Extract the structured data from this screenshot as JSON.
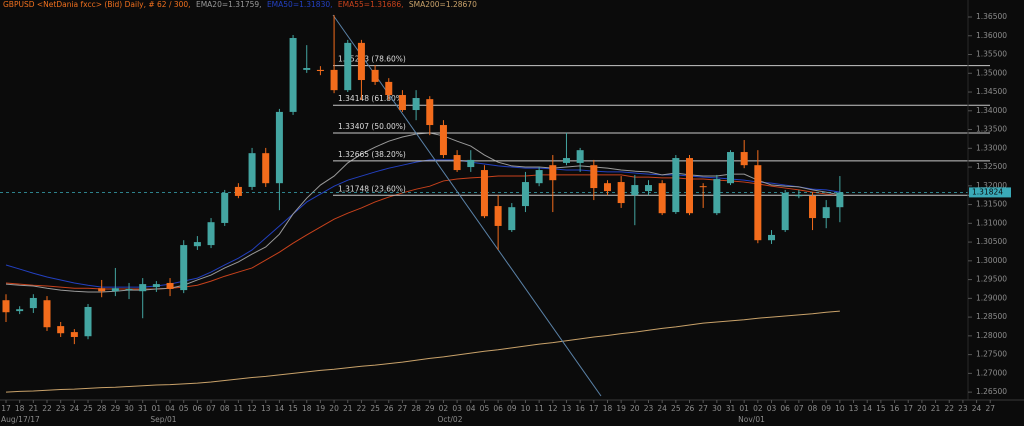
{
  "chart_data": {
    "type": "candlestick",
    "title_head": "GBPUSD <NetDania fxcc> (Bid) Daily, # 62 / 300,",
    "title_color": "#f0701e",
    "categories": [
      "17",
      "18",
      "21",
      "22",
      "23",
      "24",
      "25",
      "28",
      "29",
      "30",
      "31",
      "01",
      "04",
      "05",
      "06",
      "07",
      "08",
      "11",
      "12",
      "13",
      "14",
      "15",
      "18",
      "19",
      "20",
      "21",
      "22",
      "25",
      "26",
      "27",
      "28",
      "29",
      "02",
      "03",
      "04",
      "05",
      "06",
      "09",
      "10",
      "11",
      "12",
      "13",
      "16",
      "17",
      "18",
      "19",
      "20",
      "23",
      "24",
      "25",
      "26",
      "27",
      "30",
      "31",
      "01",
      "02",
      "03",
      "06",
      "07",
      "08",
      "09",
      "10",
      "13",
      "14",
      "15",
      "16",
      "17",
      "20",
      "21",
      "22",
      "23",
      "24",
      "27"
    ],
    "period_labels": [
      "Aug/17/17",
      null,
      null,
      null,
      null,
      null,
      null,
      null,
      null,
      null,
      null,
      "Sep/01",
      null,
      null,
      null,
      null,
      null,
      null,
      null,
      null,
      null,
      null,
      null,
      null,
      null,
      null,
      null,
      null,
      null,
      null,
      null,
      null,
      "Oct/02",
      null,
      null,
      null,
      null,
      null,
      null,
      null,
      null,
      null,
      null,
      null,
      null,
      null,
      null,
      null,
      null,
      null,
      null,
      null,
      null,
      null,
      "Nov/01",
      null,
      null,
      null,
      null,
      null,
      null,
      null,
      null,
      null,
      null,
      null,
      null,
      null,
      null,
      null,
      null,
      null,
      null
    ],
    "open": [
      1.2895,
      1.2866,
      1.2874,
      1.2895,
      1.2826,
      1.281,
      1.2799,
      1.2927,
      1.2919,
      1.2922,
      1.2919,
      1.293,
      1.2941,
      1.2922,
      1.3039,
      1.3042,
      1.3101,
      1.3197,
      1.3197,
      1.3287,
      1.3207,
      1.3397,
      1.3509,
      1.3509,
      1.3509,
      1.3455,
      1.3581,
      1.3509,
      1.3477,
      1.3442,
      1.3402,
      1.3431,
      1.3362,
      1.3282,
      1.325,
      1.3242,
      1.3146,
      1.3082,
      1.3146,
      1.3207,
      1.3255,
      1.3261,
      1.3261,
      1.3255,
      1.3207,
      1.321,
      1.3175,
      1.3186,
      1.3207,
      1.313,
      1.3274,
      1.3199,
      1.3127,
      1.3207,
      1.329,
      1.3255,
      1.3055,
      1.3082,
      1.3173,
      1.3173,
      1.3114,
      1.3143,
      null,
      null,
      null,
      null,
      null,
      null,
      null,
      null,
      null,
      null,
      null
    ],
    "high": [
      1.2911,
      1.2879,
      1.2911,
      1.2906,
      1.2837,
      1.2818,
      1.2885,
      1.2949,
      1.2981,
      1.2941,
      1.2954,
      1.2946,
      1.2954,
      1.3055,
      1.3066,
      1.3114,
      1.3189,
      1.3207,
      1.3301,
      1.3301,
      1.3405,
      1.3602,
      1.3575,
      1.3519,
      1.3655,
      1.3589,
      1.3589,
      1.3522,
      1.3487,
      1.3455,
      1.3455,
      1.3439,
      1.3375,
      1.3295,
      1.3295,
      1.3255,
      1.3175,
      1.3154,
      1.3237,
      1.325,
      1.3282,
      1.3341,
      1.3301,
      1.3269,
      1.3215,
      1.3226,
      1.3229,
      1.3215,
      1.3215,
      1.3282,
      1.3282,
      1.3207,
      1.3229,
      1.3295,
      1.3322,
      1.3295,
      1.3082,
      1.3189,
      1.3189,
      1.3183,
      1.3162,
      1.3226,
      null,
      null,
      null,
      null,
      null,
      null,
      null,
      null,
      null,
      null,
      null
    ],
    "low": [
      1.2837,
      1.2858,
      1.2861,
      1.2813,
      1.2797,
      1.2778,
      1.2791,
      1.2903,
      1.2906,
      1.2898,
      1.2847,
      1.2917,
      1.2906,
      1.2914,
      1.3029,
      1.3034,
      1.3093,
      1.3167,
      1.3189,
      1.3197,
      1.3135,
      1.3389,
      1.3501,
      1.3495,
      1.3447,
      1.345,
      1.3429,
      1.3469,
      1.3429,
      1.3397,
      1.3375,
      1.3335,
      1.3274,
      1.3237,
      1.3237,
      1.3114,
      1.3029,
      1.3077,
      1.313,
      1.3199,
      1.313,
      1.3255,
      1.3237,
      1.3162,
      1.3175,
      1.3141,
      1.3095,
      1.3175,
      1.3122,
      1.3125,
      1.3122,
      1.3141,
      1.3122,
      1.3202,
      1.3247,
      1.3047,
      1.3045,
      1.3077,
      1.3167,
      1.3082,
      1.3087,
      1.3103,
      null,
      null,
      null,
      null,
      null,
      null,
      null,
      null,
      null,
      null,
      null
    ],
    "close": [
      1.2863,
      1.2871,
      1.2901,
      1.2823,
      1.2807,
      1.2797,
      1.2877,
      1.2919,
      1.2927,
      1.2925,
      1.2938,
      1.2938,
      1.2925,
      1.3042,
      1.305,
      1.3103,
      1.3181,
      1.3173,
      1.3287,
      1.3207,
      1.3397,
      1.3594,
      1.3514,
      1.3506,
      1.3455,
      1.3581,
      1.3482,
      1.3477,
      1.3442,
      1.3402,
      1.3434,
      1.3362,
      1.3282,
      1.3242,
      1.3269,
      1.3119,
      1.3093,
      1.3143,
      1.321,
      1.3242,
      1.3215,
      1.3274,
      1.3295,
      1.3194,
      1.3186,
      1.3154,
      1.3202,
      1.3202,
      1.3127,
      1.3274,
      1.3127,
      1.3197,
      1.3218,
      1.329,
      1.3255,
      1.3055,
      1.3069,
      1.3181,
      1.3175,
      1.3114,
      1.3143,
      1.3182,
      null,
      null,
      null,
      null,
      null,
      null,
      null,
      null,
      null,
      null,
      null
    ],
    "up_color": "#44a6a2",
    "down_color": "#f36c1c",
    "series": [
      {
        "name": "SMA200=1.28670",
        "color": "#c9a26a",
        "values": [
          1.265,
          1.2652,
          1.2653,
          1.2655,
          1.2657,
          1.2658,
          1.266,
          1.2662,
          1.2663,
          1.2665,
          1.2667,
          1.2669,
          1.267,
          1.2672,
          1.2674,
          1.2677,
          1.2681,
          1.2685,
          1.2689,
          1.2692,
          1.2696,
          1.27,
          1.2704,
          1.2708,
          1.2711,
          1.2715,
          1.2719,
          1.2722,
          1.2726,
          1.273,
          1.2735,
          1.274,
          1.2744,
          1.2749,
          1.2754,
          1.2759,
          1.2763,
          1.2768,
          1.2773,
          1.2778,
          1.2782,
          1.2787,
          1.2792,
          1.2797,
          1.2801,
          1.2806,
          1.281,
          1.2815,
          1.282,
          1.2824,
          1.2829,
          1.2834,
          1.2837,
          1.284,
          1.2843,
          1.2847,
          1.285,
          1.2853,
          1.2856,
          1.2859,
          1.2863,
          1.2866,
          null,
          null,
          null,
          null,
          null,
          null,
          null,
          null,
          null,
          null,
          null
        ]
      },
      {
        "name": "EMA55=1.31686,",
        "color": "#c8421c",
        "values": [
          1.2941,
          1.2938,
          1.2935,
          1.2933,
          1.293,
          1.2927,
          1.2927,
          1.2925,
          1.2925,
          1.2925,
          1.2925,
          1.2925,
          1.2927,
          1.293,
          1.2935,
          1.2946,
          1.2959,
          1.297,
          1.2981,
          1.3002,
          1.3023,
          1.3047,
          1.3069,
          1.309,
          1.3111,
          1.3127,
          1.3141,
          1.3157,
          1.317,
          1.3181,
          1.3191,
          1.3199,
          1.3213,
          1.3218,
          1.3221,
          1.3223,
          1.3226,
          1.3226,
          1.3226,
          1.3229,
          1.3229,
          1.3229,
          1.3229,
          1.3229,
          1.3229,
          1.3229,
          1.3223,
          1.3223,
          1.3221,
          1.3221,
          1.3218,
          1.3218,
          1.3215,
          1.3213,
          1.321,
          1.3205,
          1.3199,
          1.3194,
          1.3189,
          1.3183,
          1.3178,
          1.3173,
          null,
          null,
          null,
          null,
          null,
          null,
          null,
          null,
          null,
          null,
          null
        ]
      },
      {
        "name": "EMA50=1.31830,",
        "color": "#2340c0",
        "values": [
          1.2989,
          1.2978,
          1.2967,
          1.2957,
          1.2949,
          1.2941,
          1.2935,
          1.293,
          1.293,
          1.293,
          1.293,
          1.2933,
          1.2938,
          1.2946,
          1.2954,
          1.297,
          1.2989,
          1.3007,
          1.3029,
          1.3061,
          1.3093,
          1.3125,
          1.3157,
          1.3178,
          1.3199,
          1.3215,
          1.3226,
          1.3237,
          1.3247,
          1.3255,
          1.3263,
          1.3269,
          1.3269,
          1.3269,
          1.3263,
          1.3258,
          1.3253,
          1.325,
          1.3247,
          1.3247,
          1.3245,
          1.3242,
          1.3242,
          1.3239,
          1.3237,
          1.3237,
          1.3234,
          1.3231,
          1.3229,
          1.3229,
          1.3226,
          1.3223,
          1.3221,
          1.3218,
          1.3215,
          1.321,
          1.3207,
          1.3202,
          1.3197,
          1.3191,
          1.3189,
          1.3183,
          null,
          null,
          null,
          null,
          null,
          null,
          null,
          null,
          null,
          null,
          null
        ]
      },
      {
        "name": "EMA20=1.31759,",
        "color": "#9a9a9a",
        "values": [
          1.2938,
          1.2935,
          1.2933,
          1.2927,
          1.2922,
          1.2919,
          1.2917,
          1.2917,
          1.2919,
          1.2922,
          1.2922,
          1.2925,
          1.2927,
          1.2935,
          1.2949,
          1.2962,
          1.2981,
          1.2997,
          1.3018,
          1.3037,
          1.3071,
          1.3125,
          1.3167,
          1.3202,
          1.3226,
          1.3261,
          1.3285,
          1.3303,
          1.3319,
          1.333,
          1.3338,
          1.3341,
          1.3333,
          1.3319,
          1.3306,
          1.3282,
          1.3263,
          1.3253,
          1.325,
          1.325,
          1.3247,
          1.325,
          1.3253,
          1.325,
          1.3247,
          1.3242,
          1.3239,
          1.3237,
          1.3229,
          1.3234,
          1.3229,
          1.3226,
          1.3226,
          1.3231,
          1.3231,
          1.3215,
          1.3202,
          1.3199,
          1.3197,
          1.3189,
          1.3183,
          1.3176,
          null,
          null,
          null,
          null,
          null,
          null,
          null,
          null,
          null,
          null,
          null
        ]
      }
    ],
    "ylim": [
      1.2629,
      1.3674
    ],
    "yticks": [
      {
        "value": 1.365,
        "label": "1.36500"
      },
      {
        "value": 1.36,
        "label": "1.36000"
      },
      {
        "value": 1.355,
        "label": "1.35500"
      },
      {
        "value": 1.35,
        "label": "1.35000"
      },
      {
        "value": 1.345,
        "label": "1.34500"
      },
      {
        "value": 1.34,
        "label": "1.34000"
      },
      {
        "value": 1.335,
        "label": "1.33500"
      },
      {
        "value": 1.33,
        "label": "1.33000"
      },
      {
        "value": 1.325,
        "label": "1.32500"
      },
      {
        "value": 1.32,
        "label": "1.32000"
      },
      {
        "value": 1.315,
        "label": "1.31500"
      },
      {
        "value": 1.31,
        "label": "1.31000"
      },
      {
        "value": 1.305,
        "label": "1.30500"
      },
      {
        "value": 1.3,
        "label": "1.30000"
      },
      {
        "value": 1.295,
        "label": "1.29500"
      },
      {
        "value": 1.29,
        "label": "1.29000"
      },
      {
        "value": 1.285,
        "label": "1.28500"
      },
      {
        "value": 1.28,
        "label": "1.28000"
      },
      {
        "value": 1.275,
        "label": "1.27500"
      },
      {
        "value": 1.27,
        "label": "1.27000"
      },
      {
        "value": 1.265,
        "label": "1.26500"
      }
    ],
    "fib_levels": [
      {
        "value": 1.35203,
        "label": "1.35203 (78.60%)"
      },
      {
        "value": 1.34148,
        "label": "1.34148 (61.80%)"
      },
      {
        "value": 1.33407,
        "label": "1.33407 (50.00%)"
      },
      {
        "value": 1.32665,
        "label": "1.32665 (38.20%)"
      },
      {
        "value": 1.31748,
        "label": "1.31748 (23.60%)"
      }
    ],
    "fib_color": "#c8c8c8",
    "last_price": 1.31824,
    "last_price_color": "#3aaab8"
  }
}
